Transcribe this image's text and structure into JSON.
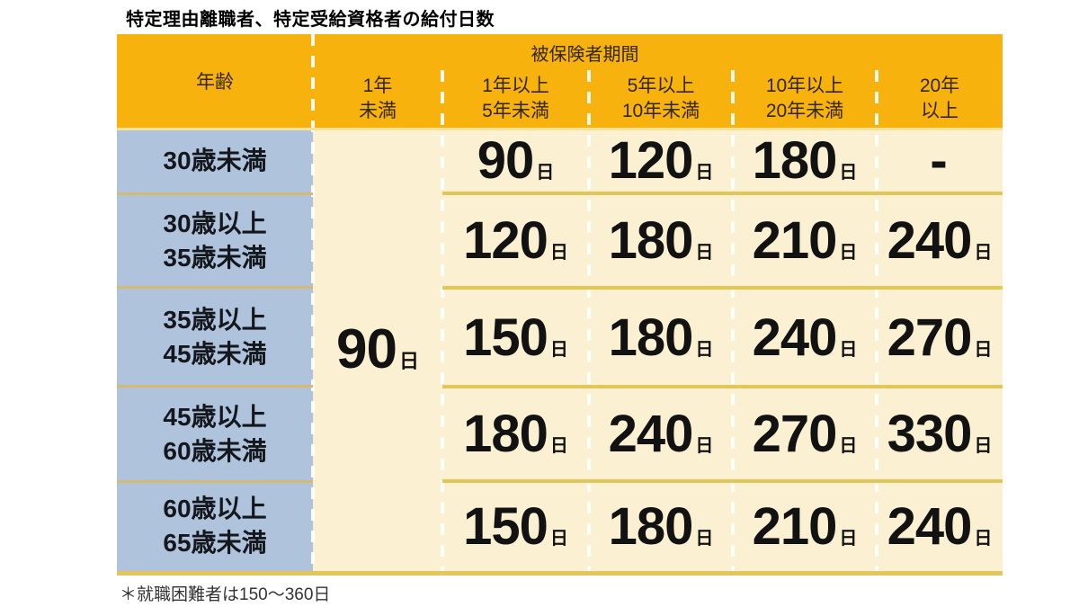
{
  "title": "特定理由離職者、特定受給資格者の給付日数",
  "table": {
    "corner_header": "年齢",
    "group_header": "被保険者期間",
    "col_headers": [
      "1年\n未満",
      "1年以上\n5年未満",
      "5年以上\n10年未満",
      "10年以上\n20年未満",
      "20年\n以上"
    ],
    "merged": {
      "value": "90",
      "unit": "日"
    },
    "rows": [
      {
        "age": "30歳未満",
        "cells": [
          {
            "value": "90",
            "unit": "日"
          },
          {
            "value": "120",
            "unit": "日"
          },
          {
            "value": "180",
            "unit": "日"
          },
          {
            "value": "-",
            "unit": ""
          }
        ]
      },
      {
        "age": "30歳以上\n35歳未満",
        "cells": [
          {
            "value": "120",
            "unit": "日"
          },
          {
            "value": "180",
            "unit": "日"
          },
          {
            "value": "210",
            "unit": "日"
          },
          {
            "value": "240",
            "unit": "日"
          }
        ]
      },
      {
        "age": "35歳以上\n45歳未満",
        "cells": [
          {
            "value": "150",
            "unit": "日"
          },
          {
            "value": "180",
            "unit": "日"
          },
          {
            "value": "240",
            "unit": "日"
          },
          {
            "value": "270",
            "unit": "日"
          }
        ]
      },
      {
        "age": "45歳以上\n60歳未満",
        "cells": [
          {
            "value": "180",
            "unit": "日"
          },
          {
            "value": "240",
            "unit": "日"
          },
          {
            "value": "270",
            "unit": "日"
          },
          {
            "value": "330",
            "unit": "日"
          }
        ]
      },
      {
        "age": "60歳以上\n65歳未満",
        "cells": [
          {
            "value": "150",
            "unit": "日"
          },
          {
            "value": "180",
            "unit": "日"
          },
          {
            "value": "210",
            "unit": "日"
          },
          {
            "value": "240",
            "unit": "日"
          }
        ]
      }
    ]
  },
  "footnote": "＊就職困難者は150〜360日",
  "colors": {
    "header_bg": "#F8B20D",
    "age_column_bg": "#AFC3DD",
    "cell_bg": "#FBF0D2",
    "row_divider_gold": "#E4C654",
    "age_divider_tan": "#D9B96E",
    "header_edge": "#F6E195",
    "dashed_divider": "#FFFFFF"
  },
  "chart_data": {
    "type": "table",
    "title": "特定理由離職者、特定受給資格者の給付日数",
    "row_header": "年齢",
    "column_group_header": "被保険者期間",
    "columns": [
      "1年未満",
      "1年以上5年未満",
      "5年以上10年未満",
      "10年以上20年未満",
      "20年以上"
    ],
    "rows": [
      "30歳未満",
      "30歳以上35歳未満",
      "35歳以上45歳未満",
      "45歳以上60歳未満",
      "60歳以上65歳未満"
    ],
    "values_days": [
      [
        90,
        90,
        120,
        180,
        null
      ],
      [
        90,
        120,
        180,
        210,
        240
      ],
      [
        90,
        150,
        180,
        240,
        270
      ],
      [
        90,
        180,
        240,
        270,
        330
      ],
      [
        90,
        150,
        180,
        210,
        240
      ]
    ],
    "note": "＊就職困難者は150〜360日"
  }
}
